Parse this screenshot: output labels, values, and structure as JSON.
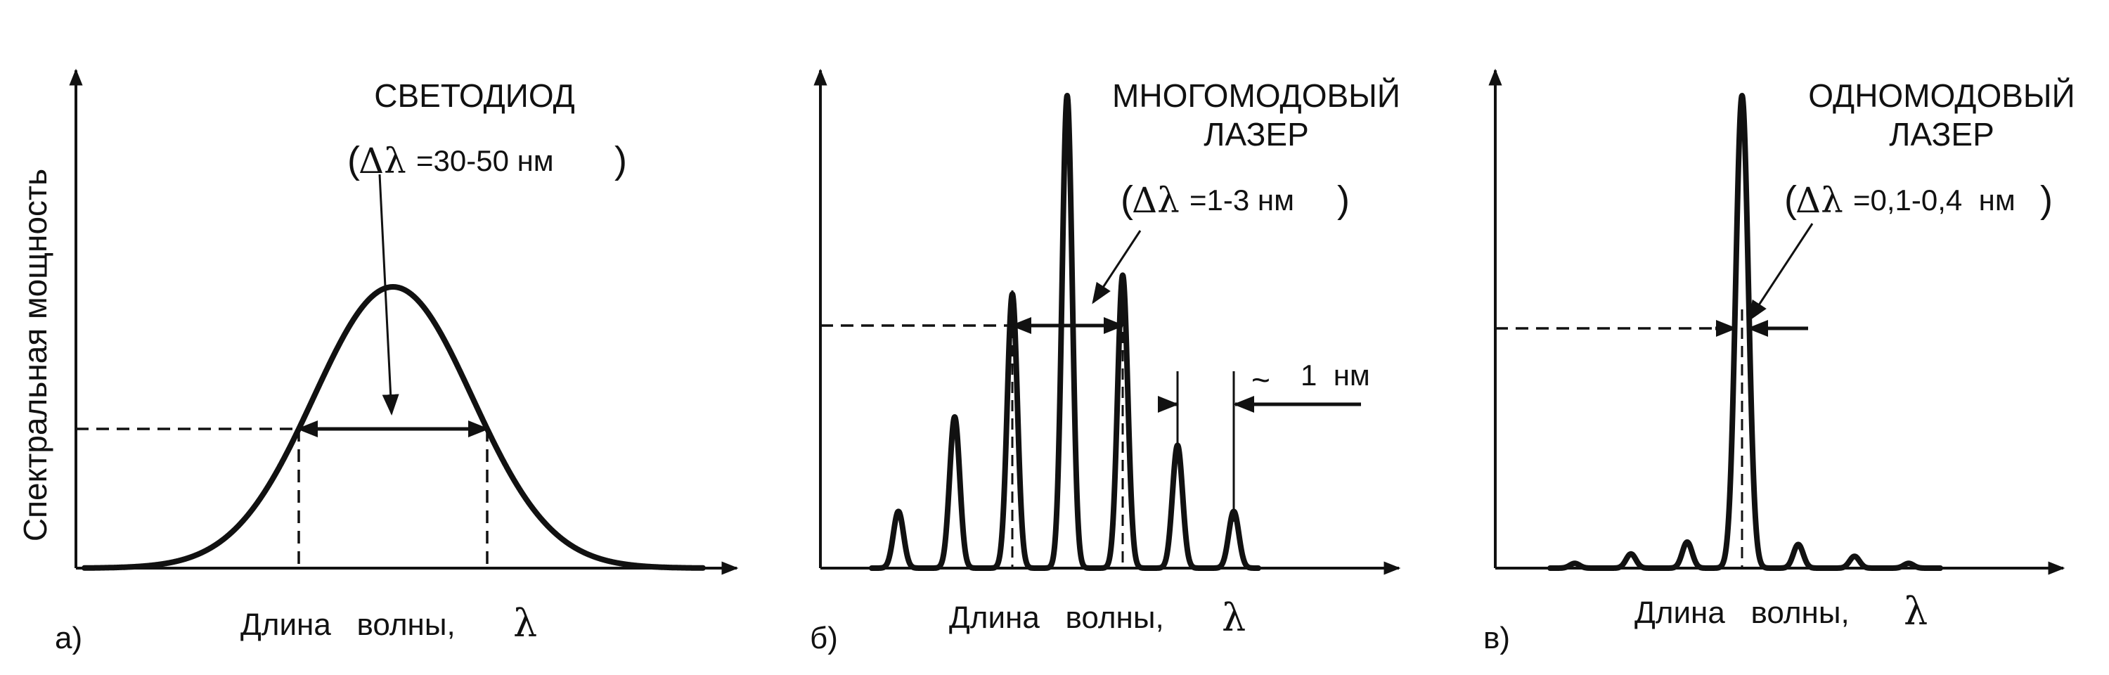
{
  "y_axis_label": "Спектральная мощность",
  "panels": [
    {
      "letter": "а)",
      "title_line1": "СВЕТОДИОД",
      "title_line2": "",
      "width_open": "(",
      "width_delta": "Δλ",
      "width_value": "=30-50 нм",
      "width_close": ")",
      "x_label": "Длина   волны,",
      "x_symbol": "λ"
    },
    {
      "letter": "б)",
      "title_line1": "МНОГОМОДОВЫЙ",
      "title_line2": "ЛАЗЕР",
      "width_open": "(",
      "width_delta": "Δλ",
      "width_value": "=1-3 нм",
      "width_close": ")",
      "spacing_tilde": "~",
      "spacing_value": "1  нм",
      "x_label": "Длина   волны,",
      "x_symbol": "λ"
    },
    {
      "letter": "в)",
      "title_line1": "ОДНОМОДОВЫЙ",
      "title_line2": "ЛАЗЕР",
      "width_open": "(",
      "width_delta": "Δλ",
      "width_value": "=0,1-0,4  нм",
      "width_close": ")",
      "x_label": "Длина   волны,",
      "x_symbol": "λ"
    }
  ],
  "chart_data": [
    {
      "type": "line",
      "curve": "gaussian",
      "peak": 1.0,
      "half_level": 0.5
    },
    {
      "type": "line",
      "curve": "multimode",
      "mode_heights": [
        0.12,
        0.32,
        0.58,
        1.0,
        0.62,
        0.26,
        0.12
      ],
      "half_level": 0.5
    },
    {
      "type": "line",
      "curve": "single-mode",
      "mode_heights": [
        0.01,
        0.03,
        0.055,
        1.0,
        0.05,
        0.025,
        0.01
      ],
      "half_level": 0.5
    }
  ]
}
